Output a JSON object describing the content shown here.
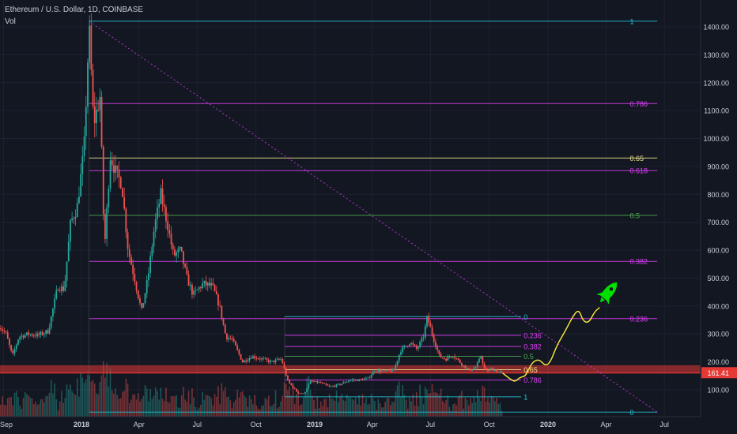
{
  "header": {
    "title": "Ethereum / U.S. Dollar, 1D, COINBASE",
    "indicator": "Vol"
  },
  "colors": {
    "bg": "#131722",
    "grid": "#1e2231",
    "axis_text": "#c8ccd6",
    "up": "#26a69a",
    "down": "#ef5350",
    "fib_cyan": "#26c6da",
    "fib_magenta": "#e040fb",
    "fib_yellow": "#f0e68c",
    "fib_green": "#4caf50",
    "price_tag": "#e53935",
    "rocket": "#00e000"
  },
  "icons": {
    "rocket": "rocket-icon"
  },
  "chart_data": {
    "type": "candlestick",
    "x_tick_labels": [
      "Sep",
      "2018",
      "Apr",
      "Jul",
      "Oct",
      "2019",
      "Apr",
      "Jul",
      "Oct",
      "2020",
      "Apr",
      "Jul"
    ],
    "y_tick_labels": [
      "100.00",
      "200.00",
      "300.00",
      "400.00",
      "500.00",
      "600.00",
      "700.00",
      "800.00",
      "900.00",
      "1000.00",
      "1100.00",
      "1200.00",
      "1300.00",
      "1400.00"
    ],
    "ylim": [
      0,
      1500
    ],
    "last_price": "161.41",
    "price_series": [
      [
        "2017-08-25",
        330
      ],
      [
        "2017-09-05",
        300
      ],
      [
        "2017-09-15",
        220
      ],
      [
        "2017-09-25",
        290
      ],
      [
        "2017-10-10",
        300
      ],
      [
        "2017-10-25",
        295
      ],
      [
        "2017-11-10",
        310
      ],
      [
        "2017-11-25",
        470
      ],
      [
        "2017-12-05",
        460
      ],
      [
        "2017-12-15",
        700
      ],
      [
        "2017-12-25",
        750
      ],
      [
        "2018-01-05",
        960
      ],
      [
        "2018-01-13",
        1400
      ],
      [
        "2018-01-20",
        1050
      ],
      [
        "2018-01-30",
        1150
      ],
      [
        "2018-02-06",
        600
      ],
      [
        "2018-02-15",
        940
      ],
      [
        "2018-02-25",
        870
      ],
      [
        "2018-03-05",
        840
      ],
      [
        "2018-03-15",
        600
      ],
      [
        "2018-03-25",
        500
      ],
      [
        "2018-04-05",
        380
      ],
      [
        "2018-04-15",
        500
      ],
      [
        "2018-04-25",
        680
      ],
      [
        "2018-05-05",
        800
      ],
      [
        "2018-05-15",
        700
      ],
      [
        "2018-05-25",
        580
      ],
      [
        "2018-06-05",
        600
      ],
      [
        "2018-06-15",
        500
      ],
      [
        "2018-06-25",
        440
      ],
      [
        "2018-07-10",
        480
      ],
      [
        "2018-07-25",
        470
      ],
      [
        "2018-08-05",
        400
      ],
      [
        "2018-08-15",
        290
      ],
      [
        "2018-08-25",
        280
      ],
      [
        "2018-09-10",
        200
      ],
      [
        "2018-09-25",
        220
      ],
      [
        "2018-10-10",
        210
      ],
      [
        "2018-10-25",
        200
      ],
      [
        "2018-11-10",
        210
      ],
      [
        "2018-11-20",
        130
      ],
      [
        "2018-12-05",
        90
      ],
      [
        "2018-12-15",
        85
      ],
      [
        "2018-12-25",
        130
      ],
      [
        "2019-01-10",
        125
      ],
      [
        "2019-01-25",
        110
      ],
      [
        "2019-02-10",
        120
      ],
      [
        "2019-02-25",
        135
      ],
      [
        "2019-03-10",
        135
      ],
      [
        "2019-03-25",
        140
      ],
      [
        "2019-04-05",
        170
      ],
      [
        "2019-04-20",
        165
      ],
      [
        "2019-05-05",
        170
      ],
      [
        "2019-05-15",
        240
      ],
      [
        "2019-05-30",
        270
      ],
      [
        "2019-06-10",
        245
      ],
      [
        "2019-06-20",
        290
      ],
      [
        "2019-06-26",
        360
      ],
      [
        "2019-07-05",
        290
      ],
      [
        "2019-07-15",
        220
      ],
      [
        "2019-07-25",
        210
      ],
      [
        "2019-08-05",
        225
      ],
      [
        "2019-08-20",
        190
      ],
      [
        "2019-08-30",
        170
      ],
      [
        "2019-09-10",
        180
      ],
      [
        "2019-09-18",
        220
      ],
      [
        "2019-09-25",
        165
      ],
      [
        "2019-10-05",
        175
      ],
      [
        "2019-10-15",
        165
      ],
      [
        "2019-10-22",
        161
      ]
    ],
    "fib_sets": [
      {
        "name": "cycle",
        "start": "2018-01-13",
        "end": "2020-06-20",
        "label_date": "2020-05-08",
        "levels": [
          {
            "label": "1",
            "price": 1420,
            "color": "fib_cyan"
          },
          {
            "label": "0.786",
            "price": 1125,
            "color": "fib_magenta"
          },
          {
            "label": "0.65",
            "price": 930,
            "color": "fib_yellow"
          },
          {
            "label": "0.618",
            "price": 885,
            "color": "fib_magenta"
          },
          {
            "label": "0.5",
            "price": 725,
            "color": "fib_green"
          },
          {
            "label": "0.382",
            "price": 560,
            "color": "fib_magenta"
          },
          {
            "label": "0.236",
            "price": 355,
            "color": "fib_magenta"
          },
          {
            "label": "0",
            "price": 20,
            "color": "fib_cyan"
          }
        ]
      },
      {
        "name": "range",
        "start": "2018-11-15",
        "end": "2019-11-20",
        "label_date": "2019-11-24",
        "levels": [
          {
            "label": "0",
            "price": 362,
            "color": "fib_cyan"
          },
          {
            "label": "0.236",
            "price": 295,
            "color": "fib_magenta"
          },
          {
            "label": "0.382",
            "price": 255,
            "color": "fib_magenta"
          },
          {
            "label": "0.5",
            "price": 220,
            "color": "fib_green"
          },
          {
            "label": "0.65",
            "price": 172,
            "color": "fib_yellow"
          },
          {
            "label": "0.786",
            "price": 135,
            "color": "fib_magenta"
          },
          {
            "label": "1",
            "price": 75,
            "color": "fib_cyan"
          }
        ]
      }
    ],
    "support_zone": {
      "low": 158,
      "high": 188
    },
    "trendline": [
      [
        "2018-01-13",
        1420
      ],
      [
        "2020-06-20",
        20
      ]
    ],
    "projection_path": [
      [
        "2019-10-22",
        160
      ],
      [
        "2019-11-02",
        140
      ],
      [
        "2019-11-10",
        128
      ],
      [
        "2019-11-18",
        145
      ],
      [
        "2019-11-26",
        148
      ],
      [
        "2019-12-01",
        170
      ],
      [
        "2019-12-08",
        200
      ],
      [
        "2019-12-18",
        210
      ],
      [
        "2019-12-28",
        185
      ],
      [
        "2020-01-05",
        200
      ],
      [
        "2020-01-15",
        260
      ],
      [
        "2020-01-28",
        310
      ],
      [
        "2020-02-08",
        360
      ],
      [
        "2020-02-18",
        390
      ],
      [
        "2020-02-25",
        345
      ],
      [
        "2020-03-05",
        340
      ],
      [
        "2020-03-14",
        380
      ],
      [
        "2020-03-22",
        395
      ]
    ],
    "rocket_point": [
      "2020-04-05",
      450
    ],
    "volume_max_label": ""
  }
}
